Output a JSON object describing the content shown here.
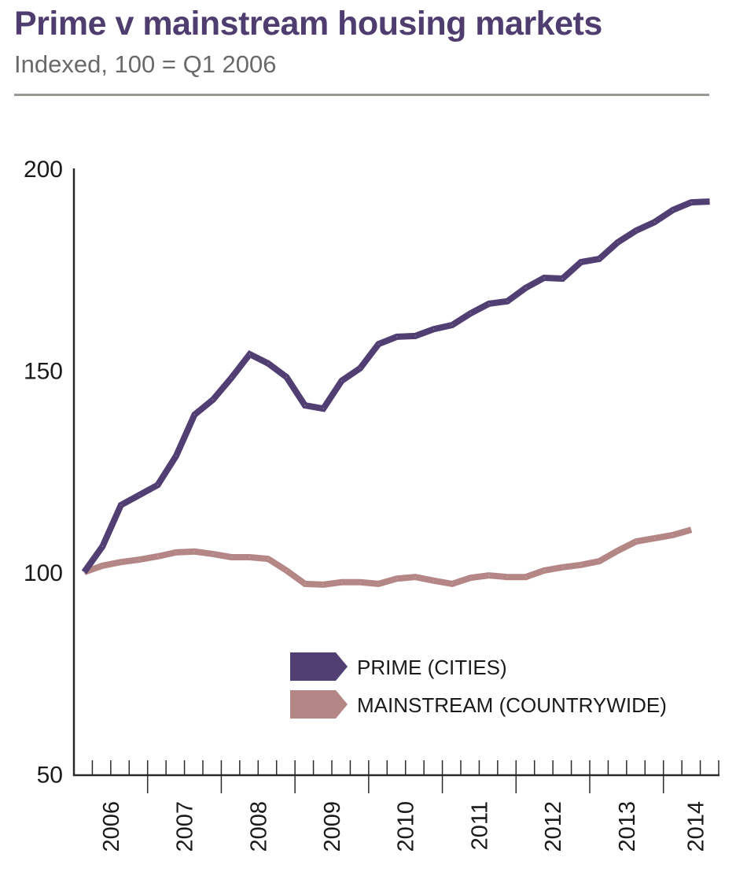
{
  "header": {
    "title": "Prime v mainstream housing markets",
    "subtitle": "Indexed, 100 = Q1 2006"
  },
  "chart_data": {
    "type": "line",
    "title": "Prime v mainstream housing markets",
    "subtitle": "Indexed, 100 = Q1 2006",
    "xlabel": "",
    "ylabel": "",
    "ylim": [
      50,
      200
    ],
    "yticks": [
      "50",
      "100",
      "150",
      "200"
    ],
    "ytick_values": [
      50,
      100,
      150,
      200
    ],
    "year_labels": [
      "2006",
      "2007",
      "2008",
      "2009",
      "2010",
      "2011",
      "2012",
      "2013",
      "2014"
    ],
    "periods": "quarterly, starting Q1 2006",
    "legend_position": "bottom-right",
    "grid": false,
    "series": [
      {
        "name": "PRIME (CITIES)",
        "color": "#513e72",
        "values": [
          100,
          106.4,
          116.6,
          119.1,
          121.6,
          128.8,
          139.0,
          142.7,
          148.1,
          154.0,
          151.7,
          148.3,
          141.3,
          140.5,
          147.4,
          150.5,
          156.5,
          158.3,
          158.5,
          160.2,
          161.2,
          164.1,
          166.5,
          167.1,
          170.4,
          172.9,
          172.7,
          176.8,
          177.6,
          181.7,
          184.6,
          186.7,
          189.7,
          191.6,
          191.8
        ]
      },
      {
        "name": "MAINSTREAM (COUNTRYWIDE)",
        "color": "#b48786",
        "values": [
          100,
          101.6,
          102.5,
          103.1,
          103.9,
          104.9,
          105.1,
          104.5,
          103.7,
          103.7,
          103.3,
          100.4,
          97.1,
          96.9,
          97.5,
          97.5,
          97.1,
          98.4,
          98.8,
          97.9,
          97.1,
          98.6,
          99.2,
          98.8,
          98.8,
          100.4,
          101.2,
          101.8,
          102.7,
          105.3,
          107.6,
          108.4,
          109.2,
          110.5
        ]
      }
    ]
  }
}
